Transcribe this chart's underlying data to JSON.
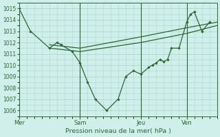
{
  "background_color": "#d0eeea",
  "grid_color": "#a8d8d0",
  "line_color": "#2a6632",
  "xlabel": "Pression niveau de la mer( hPa )",
  "ylim": [
    1005.5,
    1015.5
  ],
  "yticks": [
    1006,
    1007,
    1008,
    1009,
    1010,
    1011,
    1012,
    1013,
    1014,
    1015
  ],
  "day_labels": [
    "Mer",
    "Sam",
    "Jeu",
    "Ven"
  ],
  "day_positions": [
    0,
    8,
    16,
    22
  ],
  "xlim": [
    0,
    26
  ],
  "s1_x": [
    0,
    1.5,
    4,
    5,
    5.5,
    7,
    8,
    9,
    10,
    11.5,
    13,
    14,
    15,
    16,
    17,
    17.5,
    18,
    18.5,
    19,
    19.5,
    20,
    21,
    22,
    22.5,
    23,
    24,
    25
  ],
  "s1_y": [
    1015,
    1013,
    1011.5,
    1012,
    1011.8,
    1011.2,
    1010.2,
    1008.5,
    1007,
    1006,
    1007,
    1009,
    1009.5,
    1009.2,
    1009.8,
    1010,
    1010.2,
    1010.5,
    1010.3,
    1010.5,
    1011.5,
    1011.5,
    1013.8,
    1014.5,
    1014.7,
    1013,
    1013.8
  ],
  "s2_x": [
    4,
    8,
    16,
    22,
    26
  ],
  "s2_y": [
    1011.8,
    1011.5,
    1012.5,
    1013.3,
    1013.8
  ],
  "s3_x": [
    4,
    8,
    16,
    22,
    26
  ],
  "s3_y": [
    1011.5,
    1011.2,
    1012.0,
    1012.8,
    1013.5
  ],
  "vline_positions": [
    0,
    8,
    16,
    22
  ]
}
